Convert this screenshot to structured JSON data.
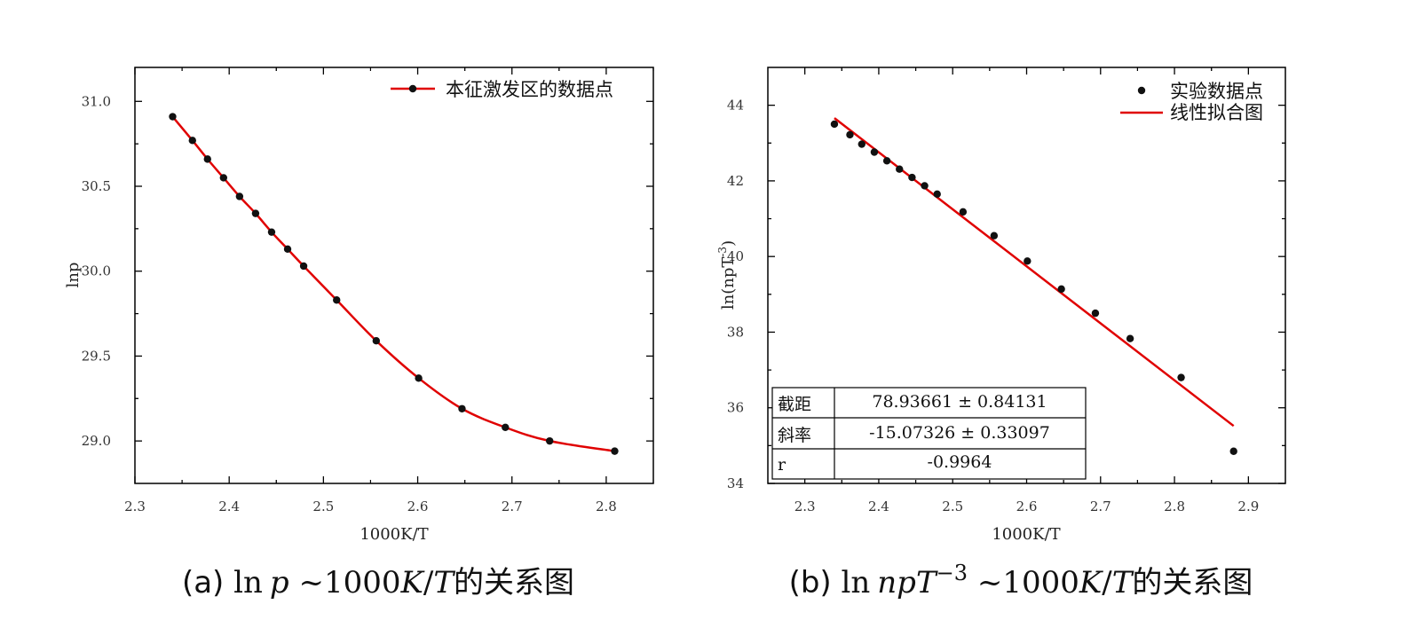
{
  "chart_data": [
    {
      "type": "line",
      "xlabel": "1000K/T",
      "ylabel": "lnp",
      "xlim": [
        2.3,
        2.85
      ],
      "ylim": [
        28.75,
        31.2
      ],
      "xticks": [
        "2.3",
        "2.4",
        "2.5",
        "2.6",
        "2.7",
        "2.8"
      ],
      "yticks": [
        "29.0",
        "29.5",
        "30.0",
        "30.5",
        "31.0"
      ],
      "legend": {
        "position": "top-right",
        "entries": [
          "本征激发区的数据点"
        ]
      },
      "series": [
        {
          "name": "本征激发区的数据点",
          "color": "#e00000",
          "marker_color": "#111111",
          "x": [
            2.34,
            2.361,
            2.377,
            2.394,
            2.411,
            2.428,
            2.445,
            2.462,
            2.479,
            2.514,
            2.556,
            2.601,
            2.647,
            2.693,
            2.74,
            2.809
          ],
          "y": [
            30.91,
            30.77,
            30.66,
            30.55,
            30.44,
            30.34,
            30.23,
            30.13,
            30.03,
            29.83,
            29.59,
            29.37,
            29.19,
            29.08,
            29.0,
            28.94
          ]
        }
      ],
      "caption": {
        "prefix": "(a) ",
        "formula_ln": "ln",
        "formula_p": "p",
        "formula_rest": " ~1000",
        "formula_k": "K",
        "formula_slash": "/",
        "formula_t": "T",
        "suffix": "的关系图"
      }
    },
    {
      "type": "scatter",
      "xlabel": "1000K/T",
      "ylabel": "ln(npT",
      "ylabel_sup": "-3",
      "ylabel_close": ")",
      "xlim": [
        2.25,
        2.95
      ],
      "ylim": [
        34,
        45
      ],
      "xticks": [
        "2.3",
        "2.4",
        "2.5",
        "2.6",
        "2.7",
        "2.8",
        "2.9"
      ],
      "yticks": [
        "34",
        "36",
        "38",
        "40",
        "42",
        "44"
      ],
      "legend": {
        "position": "top-right",
        "entries": [
          "实验数据点",
          "线性拟合图"
        ]
      },
      "series": [
        {
          "name": "实验数据点",
          "color": "#111111",
          "x": [
            2.34,
            2.361,
            2.377,
            2.394,
            2.411,
            2.428,
            2.445,
            2.462,
            2.479,
            2.514,
            2.556,
            2.601,
            2.647,
            2.693,
            2.74,
            2.809,
            2.88
          ],
          "y": [
            43.5,
            43.22,
            42.97,
            42.76,
            42.53,
            42.31,
            42.09,
            41.87,
            41.65,
            41.18,
            40.55,
            39.88,
            39.14,
            38.5,
            37.83,
            36.8,
            34.85
          ]
        },
        {
          "name": "线性拟合图",
          "color": "#e00000",
          "x": [
            2.34,
            2.88
          ],
          "y": [
            43.66,
            35.52
          ]
        }
      ],
      "fit_table": {
        "rows": [
          {
            "label": "截距",
            "value": "78.93661 ± 0.84131"
          },
          {
            "label": "斜率",
            "value": "-15.07326 ± 0.33097"
          },
          {
            "label": "r",
            "value": "-0.9964"
          }
        ]
      },
      "caption": {
        "prefix": "(b) ",
        "formula_ln": "ln",
        "formula_np": "np",
        "formula_t": "T",
        "formula_sup": "−3",
        "formula_rest": " ~1000",
        "formula_k": "K",
        "formula_slash": "/",
        "formula_t2": "T",
        "suffix": "的关系图"
      }
    }
  ]
}
